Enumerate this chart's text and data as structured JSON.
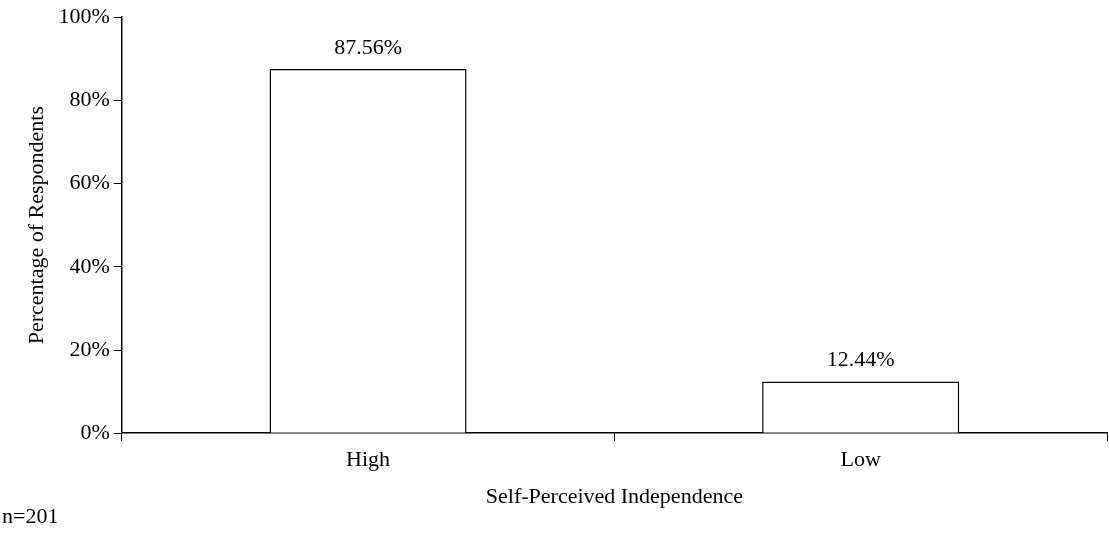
{
  "chart_data": {
    "type": "bar",
    "xlabel": "Self-Perceived Independence",
    "ylabel": "Percentage of Respondents",
    "categories": [
      "High",
      "Low"
    ],
    "values": [
      87.56,
      12.44
    ],
    "value_labels": [
      "87.56%",
      "12.44%"
    ],
    "color": "#ffffff",
    "ylim": [
      0,
      100
    ],
    "yticks": [
      {
        "value": 0,
        "label": "0%"
      },
      {
        "value": 20,
        "label": "20%"
      },
      {
        "value": 40,
        "label": "40%"
      },
      {
        "value": 60,
        "label": "60%"
      },
      {
        "value": 80,
        "label": "80%"
      },
      {
        "value": 100,
        "label": "100%"
      }
    ],
    "annotations": [
      "n=201"
    ]
  }
}
